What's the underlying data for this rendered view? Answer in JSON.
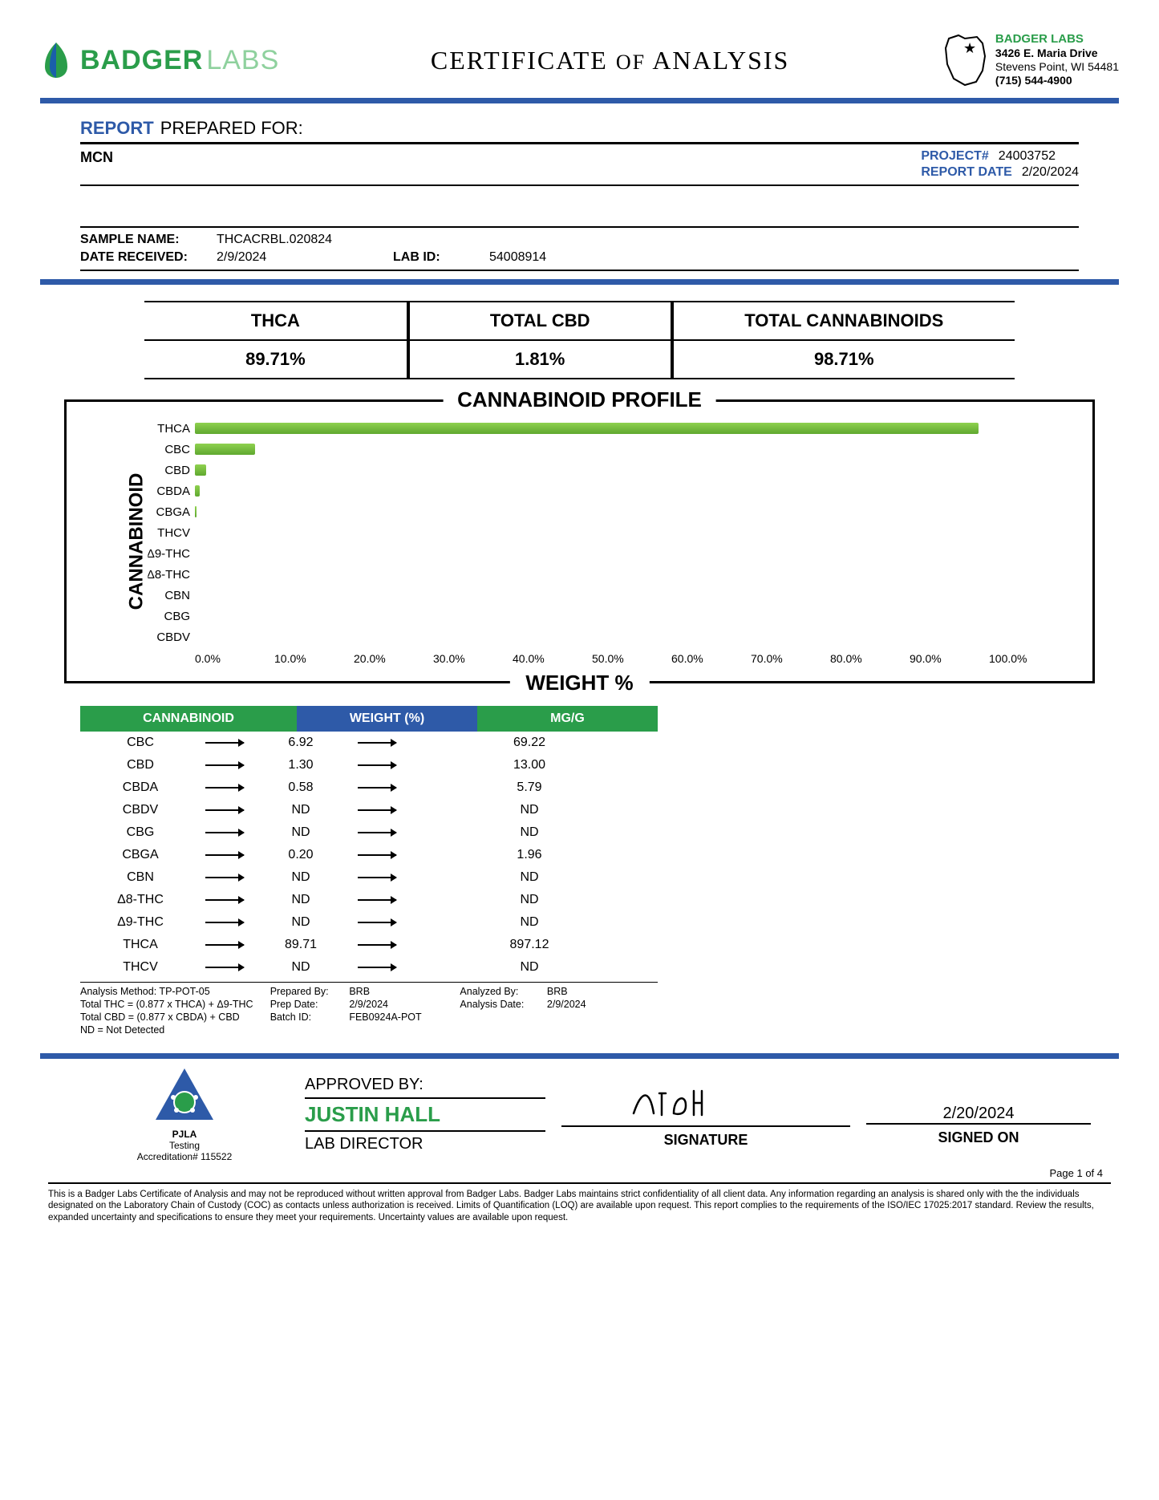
{
  "brand": {
    "name1": "BADGER",
    "name2": "LABS"
  },
  "title": "CERTIFICATE OF ANALYSIS",
  "address": {
    "name": "BADGER LABS",
    "line1": "3426 E. Maria Drive",
    "line2": "Stevens Point, WI 54481",
    "phone": "(715) 544-4900"
  },
  "report": {
    "heading1": "REPORT",
    "heading2": "PREPARED FOR:",
    "client": "MCN",
    "project_lbl": "PROJECT#",
    "project": "24003752",
    "date_lbl": "REPORT DATE",
    "date": "2/20/2024",
    "sample_name_lbl": "SAMPLE NAME:",
    "sample_name": "THCACRBL.020824",
    "date_recv_lbl": "DATE RECEIVED:",
    "date_recv": "2/9/2024",
    "lab_id_lbl": "LAB ID:",
    "lab_id": "54008914"
  },
  "summary": {
    "h1": "THCA",
    "v1": "89.71%",
    "h2": "TOTAL CBD",
    "v2": "1.81%",
    "h3": "TOTAL CANNABINOIDS",
    "v3": "98.71%"
  },
  "chart": {
    "title": "CANNABINOID PROFILE",
    "ylabel": "CANNABINOID",
    "xlabel": "WEIGHT %",
    "xmax": 100,
    "xticks": [
      "0.0%",
      "10.0%",
      "20.0%",
      "30.0%",
      "40.0%",
      "50.0%",
      "60.0%",
      "70.0%",
      "80.0%",
      "90.0%",
      "100.0%"
    ],
    "bars": [
      {
        "label": "THCA",
        "value": 89.71
      },
      {
        "label": "CBC",
        "value": 6.92
      },
      {
        "label": "CBD",
        "value": 1.3
      },
      {
        "label": "CBDA",
        "value": 0.58
      },
      {
        "label": "CBGA",
        "value": 0.2
      },
      {
        "label": "THCV",
        "value": 0
      },
      {
        "label": "Δ9-THC",
        "value": 0
      },
      {
        "label": "Δ8-THC",
        "value": 0
      },
      {
        "label": "CBN",
        "value": 0
      },
      {
        "label": "CBG",
        "value": 0
      },
      {
        "label": "CBDV",
        "value": 0
      }
    ],
    "bar_color_top": "#8fd14f",
    "bar_color_bot": "#5fa82f"
  },
  "table": {
    "h1": "CANNABINOID",
    "h2": "WEIGHT (%)",
    "h3": "MG/G",
    "header_colors": {
      "c1": "#2a9d4a",
      "c2": "#2e5aa8",
      "c3": "#2a9d4a"
    },
    "rows": [
      {
        "n": "CBC",
        "w": "6.92",
        "m": "69.22"
      },
      {
        "n": "CBD",
        "w": "1.30",
        "m": "13.00"
      },
      {
        "n": "CBDA",
        "w": "0.58",
        "m": "5.79"
      },
      {
        "n": "CBDV",
        "w": "ND",
        "m": "ND"
      },
      {
        "n": "CBG",
        "w": "ND",
        "m": "ND"
      },
      {
        "n": "CBGA",
        "w": "0.20",
        "m": "1.96"
      },
      {
        "n": "CBN",
        "w": "ND",
        "m": "ND"
      },
      {
        "n": "Δ8-THC",
        "w": "ND",
        "m": "ND"
      },
      {
        "n": "Δ9-THC",
        "w": "ND",
        "m": "ND"
      },
      {
        "n": "THCA",
        "w": "89.71",
        "m": "897.12"
      },
      {
        "n": "THCV",
        "w": "ND",
        "m": "ND"
      }
    ],
    "foot": {
      "l1": "Analysis Method: TP-POT-05",
      "l2": "Total THC = (0.877 x THCA) + Δ9-THC",
      "l3": "Total CBD = (0.877 x CBDA) + CBD",
      "l4": "ND = Not Detected",
      "prep_by_lbl": "Prepared By:",
      "prep_by": "BRB",
      "prep_date_lbl": "Prep Date:",
      "prep_date": "2/9/2024",
      "batch_lbl": "Batch ID:",
      "batch": "FEB0924A-POT",
      "anal_by_lbl": "Analyzed By:",
      "anal_by": "BRB",
      "anal_date_lbl": "Analysis Date:",
      "anal_date": "2/9/2024"
    }
  },
  "signature": {
    "pjla_name": "PJLA",
    "pjla_sub": "Testing",
    "pjla_acc": "Accreditation# 115522",
    "approved_lbl": "APPROVED BY:",
    "approver": "JUSTIN HALL",
    "role": "LAB DIRECTOR",
    "sig_lbl": "SIGNATURE",
    "signed_date": "2/20/2024",
    "signed_lbl": "SIGNED ON"
  },
  "page": "Page 1 of 4",
  "disclaimer": "This is a Badger Labs Certificate of Analysis and may not be reproduced without written approval from Badger Labs. Badger Labs maintains strict confidentiality of all client data. Any information regarding an analysis is shared only with the the individuals designated on the Laboratory Chain of Custody (COC) as contacts unless authorization is received. Limits of Quantification (LOQ) are available upon request. This report complies to the requirements of the ISO/IEC 17025:2017 standard. Review the results, expanded uncertainty and specifications to ensure they meet your requirements. Uncertainty values are available upon request.",
  "colors": {
    "blue": "#2e5aa8",
    "green": "#2a9d4a"
  }
}
